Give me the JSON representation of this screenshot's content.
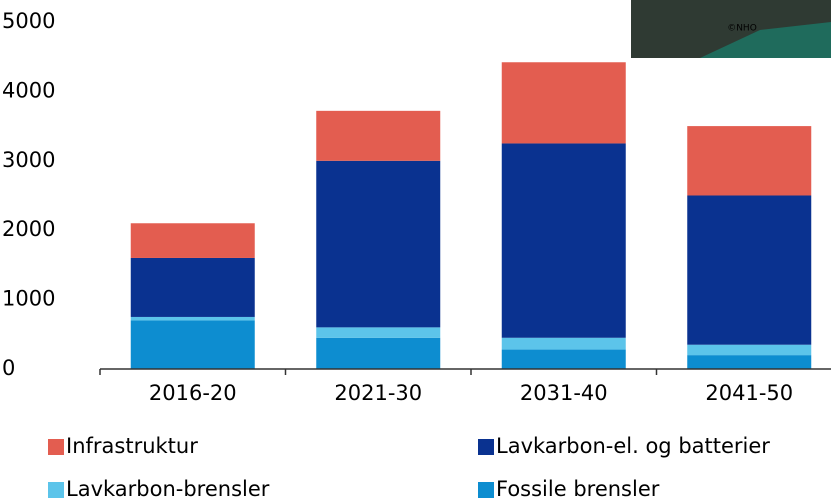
{
  "chart_data": {
    "type": "bar",
    "stacked": true,
    "categories": [
      "2016-20",
      "2021-30",
      "2031-40",
      "2041-50"
    ],
    "series": [
      {
        "name": "Infrastruktur",
        "color": "#e35d50",
        "values": [
          500,
          720,
          1170,
          1000
        ]
      },
      {
        "name": "Lavkarbon-el. og batterier",
        "color": "#0a3290",
        "values": [
          850,
          2400,
          2800,
          2150
        ]
      },
      {
        "name": "Lavkarbon-brensler",
        "color": "#5cc4ea",
        "values": [
          50,
          150,
          170,
          150
        ]
      },
      {
        "name": "Fossile brensler",
        "color": "#0d8dd0",
        "values": [
          700,
          450,
          280,
          200
        ]
      }
    ],
    "ylim": [
      0,
      5000
    ],
    "yticks": [
      0,
      1000,
      2000,
      3000,
      4000,
      5000
    ],
    "grid": false,
    "legend": "bottom"
  },
  "photo": {
    "credit": "©NHO"
  }
}
